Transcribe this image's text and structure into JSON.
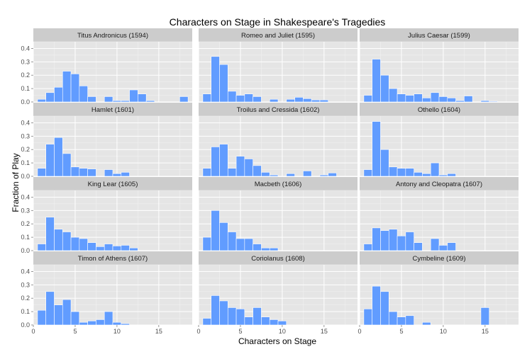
{
  "chart_data": {
    "type": "bar",
    "title": "Characters on Stage in Shakespeare's Tragedies",
    "xlabel": "Characters on Stage",
    "ylabel": "Fraction of Play",
    "xlim": [
      0,
      19
    ],
    "ylim": [
      0,
      0.45
    ],
    "xticks": [
      0,
      5,
      10,
      15
    ],
    "yticks": [
      0.0,
      0.1,
      0.2,
      0.3,
      0.4
    ],
    "tick_labels_x": [
      "0",
      "5",
      "10",
      "15"
    ],
    "tick_labels_y": [
      "0.0",
      "0.1",
      "0.2",
      "0.3",
      "0.4"
    ],
    "bar_color": "#619cff",
    "panel_bg": "#e5e5e5",
    "strip_bg": "#cccccc",
    "grid": true,
    "bins": [
      1,
      2,
      3,
      4,
      5,
      6,
      7,
      8,
      9,
      10,
      11,
      12,
      13,
      14,
      15,
      16,
      17,
      18
    ],
    "panels": [
      {
        "name": "Titus Andronicus (1594)",
        "values": [
          0.02,
          0.07,
          0.11,
          0.23,
          0.21,
          0.12,
          0.04,
          0.0,
          0.04,
          0.01,
          0.01,
          0.09,
          0.06,
          0.01,
          0.0,
          0.0,
          0.0,
          0.04
        ]
      },
      {
        "name": "Romeo and Juliet (1595)",
        "values": [
          0.06,
          0.34,
          0.28,
          0.08,
          0.05,
          0.06,
          0.04,
          0.0,
          0.02,
          0.0,
          0.02,
          0.035,
          0.025,
          0.015,
          0.015,
          0.0,
          0.0,
          0.0
        ]
      },
      {
        "name": "Julius Caesar (1599)",
        "values": [
          0.05,
          0.32,
          0.2,
          0.1,
          0.06,
          0.05,
          0.06,
          0.03,
          0.07,
          0.04,
          0.03,
          0.01,
          0.045,
          0.0,
          0.01,
          0.005,
          0.0,
          0.0
        ]
      },
      {
        "name": "Hamlet (1601)",
        "values": [
          0.06,
          0.24,
          0.29,
          0.17,
          0.07,
          0.06,
          0.055,
          0.0,
          0.05,
          0.02,
          0.03,
          0.0,
          0.0,
          0.0,
          0.0,
          0.0,
          0.0,
          0.0
        ]
      },
      {
        "name": "Troilus and Cressida (1602)",
        "values": [
          0.06,
          0.22,
          0.24,
          0.06,
          0.15,
          0.13,
          0.08,
          0.03,
          0.01,
          0.0,
          0.02,
          0.0,
          0.04,
          0.0,
          0.01,
          0.025,
          0.0,
          0.0
        ]
      },
      {
        "name": "Othello (1604)",
        "values": [
          0.05,
          0.41,
          0.2,
          0.07,
          0.06,
          0.06,
          0.03,
          0.02,
          0.1,
          0.01,
          0.02,
          0.0,
          0.0,
          0.0,
          0.0,
          0.0,
          0.0,
          0.0
        ]
      },
      {
        "name": "King Lear (1605)",
        "values": [
          0.05,
          0.25,
          0.16,
          0.14,
          0.1,
          0.09,
          0.06,
          0.03,
          0.05,
          0.035,
          0.04,
          0.02,
          0.0,
          0.0,
          0.0,
          0.0,
          0.0,
          0.0
        ]
      },
      {
        "name": "Macbeth (1606)",
        "values": [
          0.1,
          0.3,
          0.21,
          0.14,
          0.09,
          0.09,
          0.05,
          0.02,
          0.02,
          0.0,
          0.0,
          0.0,
          0.0,
          0.0,
          0.0,
          0.0,
          0.0,
          0.0
        ]
      },
      {
        "name": "Antony and Cleopatra (1607)",
        "values": [
          0.05,
          0.17,
          0.15,
          0.16,
          0.11,
          0.14,
          0.06,
          0.0,
          0.09,
          0.04,
          0.06,
          0.0,
          0.0,
          0.0,
          0.0,
          0.0,
          0.0,
          0.0
        ]
      },
      {
        "name": "Timon of Athens (1607)",
        "values": [
          0.11,
          0.25,
          0.15,
          0.19,
          0.1,
          0.02,
          0.03,
          0.04,
          0.1,
          0.02,
          0.01,
          0.0,
          0.0,
          0.0,
          0.0,
          0.0,
          0.0,
          0.0
        ]
      },
      {
        "name": "Coriolanus (1608)",
        "values": [
          0.05,
          0.22,
          0.18,
          0.13,
          0.12,
          0.06,
          0.13,
          0.06,
          0.04,
          0.03,
          0.0,
          0.0,
          0.0,
          0.0,
          0.0,
          0.0,
          0.0,
          0.0
        ]
      },
      {
        "name": "Cymbeline (1609)",
        "values": [
          0.12,
          0.29,
          0.25,
          0.1,
          0.06,
          0.07,
          0.0,
          0.02,
          0.0,
          0.0,
          0.0,
          0.0,
          0.0,
          0.0,
          0.13,
          0.0,
          0.0,
          0.0
        ]
      }
    ]
  }
}
